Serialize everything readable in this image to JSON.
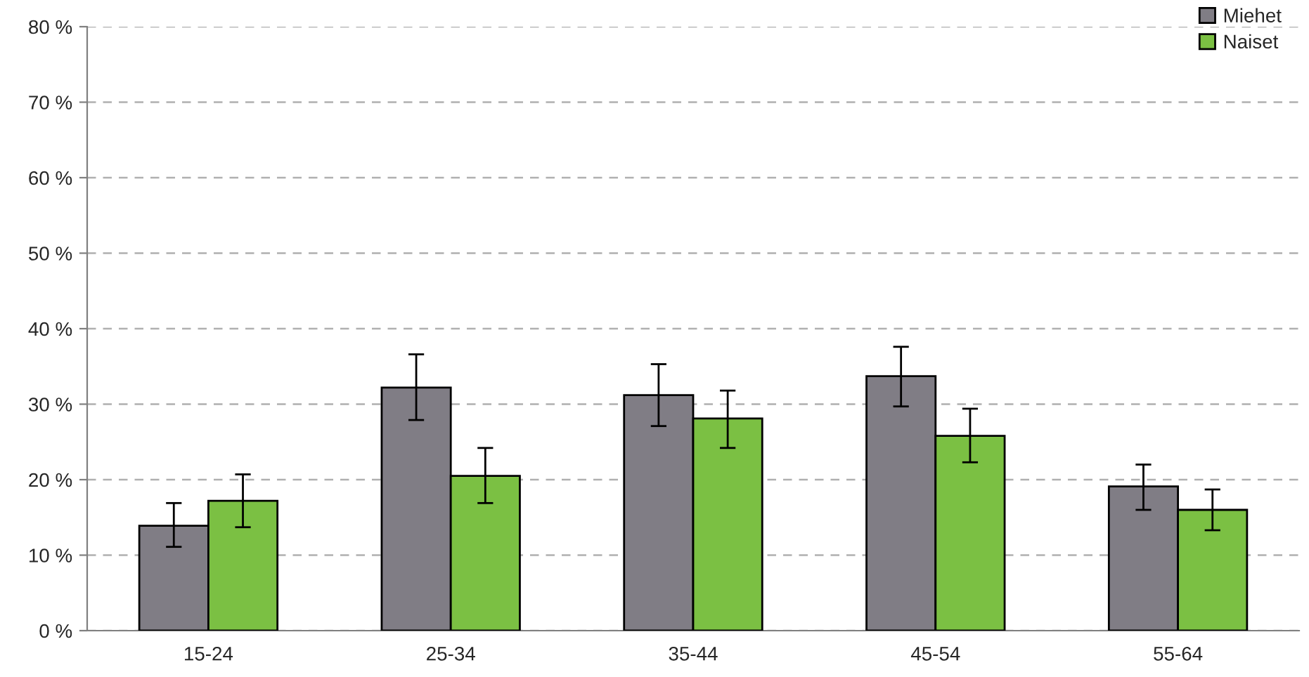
{
  "chart_data": {
    "type": "bar",
    "categories": [
      "15-24",
      "25-34",
      "35-44",
      "45-54",
      "55-64"
    ],
    "series": [
      {
        "name": "Miehet",
        "color": "#807d85",
        "values": [
          13.9,
          32.2,
          31.2,
          33.7,
          19.1
        ],
        "errors": [
          [
            11.1,
            16.9
          ],
          [
            27.9,
            36.6
          ],
          [
            27.1,
            35.3
          ],
          [
            29.7,
            37.6
          ],
          [
            16.0,
            22.0
          ]
        ]
      },
      {
        "name": "Naiset",
        "color": "#7bc043",
        "values": [
          17.2,
          20.5,
          28.1,
          25.8,
          16.0
        ],
        "errors": [
          [
            13.7,
            20.7
          ],
          [
            16.9,
            24.2
          ],
          [
            24.2,
            31.8
          ],
          [
            22.3,
            29.4
          ],
          [
            13.3,
            18.7
          ]
        ]
      }
    ],
    "ylim": [
      0,
      80
    ],
    "yticks": [
      {
        "value": 0,
        "label": "0 %"
      },
      {
        "value": 10,
        "label": "10 %"
      },
      {
        "value": 20,
        "label": "20 %"
      },
      {
        "value": 30,
        "label": "30 %"
      },
      {
        "value": 40,
        "label": "40 %"
      },
      {
        "value": 50,
        "label": "50 %"
      },
      {
        "value": 60,
        "label": "60 %"
      },
      {
        "value": 70,
        "label": "70 %"
      },
      {
        "value": 80,
        "label": "80 %"
      }
    ],
    "grid": "y",
    "legend": "top right"
  }
}
